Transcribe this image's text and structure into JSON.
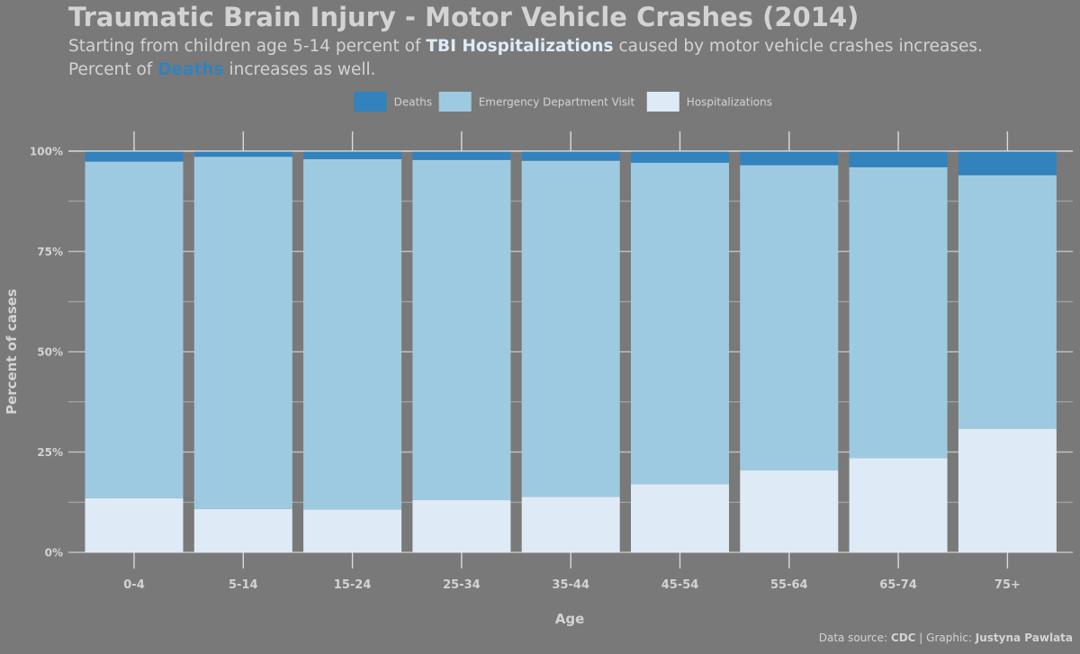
{
  "title": "Traumatic Brain Injury - Motor Vehicle Crashes (2014)",
  "subtitle": {
    "line1_pre": "Starting from children age 5-14 percent of ",
    "line1_bold": "TBI Hospitalizations",
    "line1_post": " caused by motor vehicle crashes increases.",
    "line2_pre": "Percent of ",
    "line2_bold": "Deaths",
    "line2_post": " increases as well."
  },
  "caption": {
    "prefix": "Data source: ",
    "source": "CDC",
    "middle": " | Graphic: ",
    "author": "Justyna Pawlata"
  },
  "colors": {
    "background": "#797979",
    "text": "#d3d3d3",
    "deaths": "#3182bd",
    "emergency": "#9ecae1",
    "hospitalizations": "#deebf7",
    "grid": "#bfbfbf"
  },
  "chart_data": {
    "type": "bar",
    "stacked": true,
    "percent": true,
    "xlabel": "Age",
    "ylabel": "Percent of cases",
    "ylim": [
      0,
      100
    ],
    "yticks": [
      0,
      25,
      50,
      75,
      100
    ],
    "ytick_labels": [
      "0%",
      "25%",
      "50%",
      "75%",
      "100%"
    ],
    "grid": true,
    "legend_position": "top",
    "categories": [
      "0-4",
      "5-14",
      "15-24",
      "25-34",
      "35-44",
      "45-54",
      "55-64",
      "65-74",
      "75+"
    ],
    "series": [
      {
        "name": "Hospitalizations",
        "color": "#deebf7",
        "values": [
          13.5,
          10.8,
          10.7,
          13.0,
          13.8,
          17.0,
          20.4,
          23.5,
          30.8
        ]
      },
      {
        "name": "Emergency Department Visit",
        "color": "#9ecae1",
        "values": [
          83.9,
          87.8,
          87.3,
          84.8,
          83.8,
          80.1,
          76.1,
          72.5,
          63.2
        ]
      },
      {
        "name": "Deaths",
        "color": "#3182bd",
        "values": [
          2.6,
          1.4,
          2.0,
          2.2,
          2.4,
          2.9,
          3.5,
          4.0,
          6.0
        ]
      }
    ],
    "legend_order": [
      "Deaths",
      "Emergency Department Visit",
      "Hospitalizations"
    ]
  }
}
